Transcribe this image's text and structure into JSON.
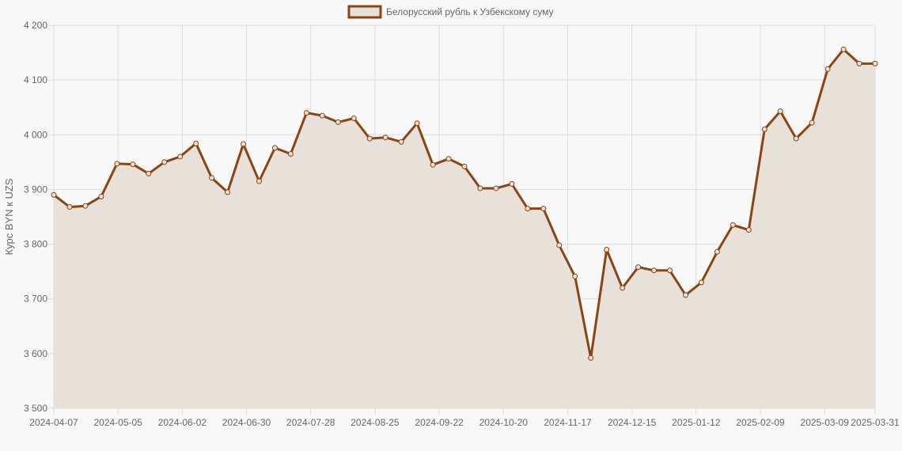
{
  "chart_data": {
    "type": "line",
    "series": [
      {
        "name": "Белорусский рубль к Узбекскому суму",
        "values": [
          3890,
          3868,
          3870,
          3887,
          3947,
          3946,
          3929,
          3950,
          3960,
          3984,
          3921,
          3895,
          3983,
          3915,
          3976,
          3965,
          4040,
          4035,
          4023,
          4030,
          3993,
          3995,
          3987,
          4021,
          3945,
          3956,
          3942,
          3902,
          3902,
          3910,
          3865,
          3865,
          3798,
          3741,
          3592,
          3790,
          3720,
          3758,
          3752,
          3752,
          3707,
          3730,
          3786,
          3835,
          3826,
          4010,
          4043,
          3993,
          4022,
          4120,
          4156,
          4130,
          4130
        ]
      }
    ],
    "x_tick_labels": [
      "2024-04-07",
      "2024-05-05",
      "2024-06-02",
      "2024-06-30",
      "2024-07-28",
      "2024-08-25",
      "2024-09-22",
      "2024-10-20",
      "2024-11-17",
      "2024-12-15",
      "2025-01-12",
      "2025-02-09",
      "2025-03-09",
      "2025-03-31"
    ],
    "x_range": [
      "2024-04-07",
      "2025-03-31"
    ],
    "y_ticks": [
      3500,
      3600,
      3700,
      3800,
      3900,
      4000,
      4100,
      4200
    ],
    "y_tick_labels": [
      "3 500",
      "3 600",
      "3 700",
      "3 800",
      "3 900",
      "4 000",
      "4 100",
      "4 200"
    ],
    "ylim": [
      3500,
      4200
    ],
    "ylabel": "Курс BYN к UZS",
    "xlabel": "",
    "title": "",
    "grid": true,
    "legend_position": "top-center",
    "colors": {
      "line": "#8b4513",
      "fill": "#e8e1d9",
      "grid": "#dddddd",
      "background": "#f8f8f8",
      "text": "#666666"
    }
  }
}
